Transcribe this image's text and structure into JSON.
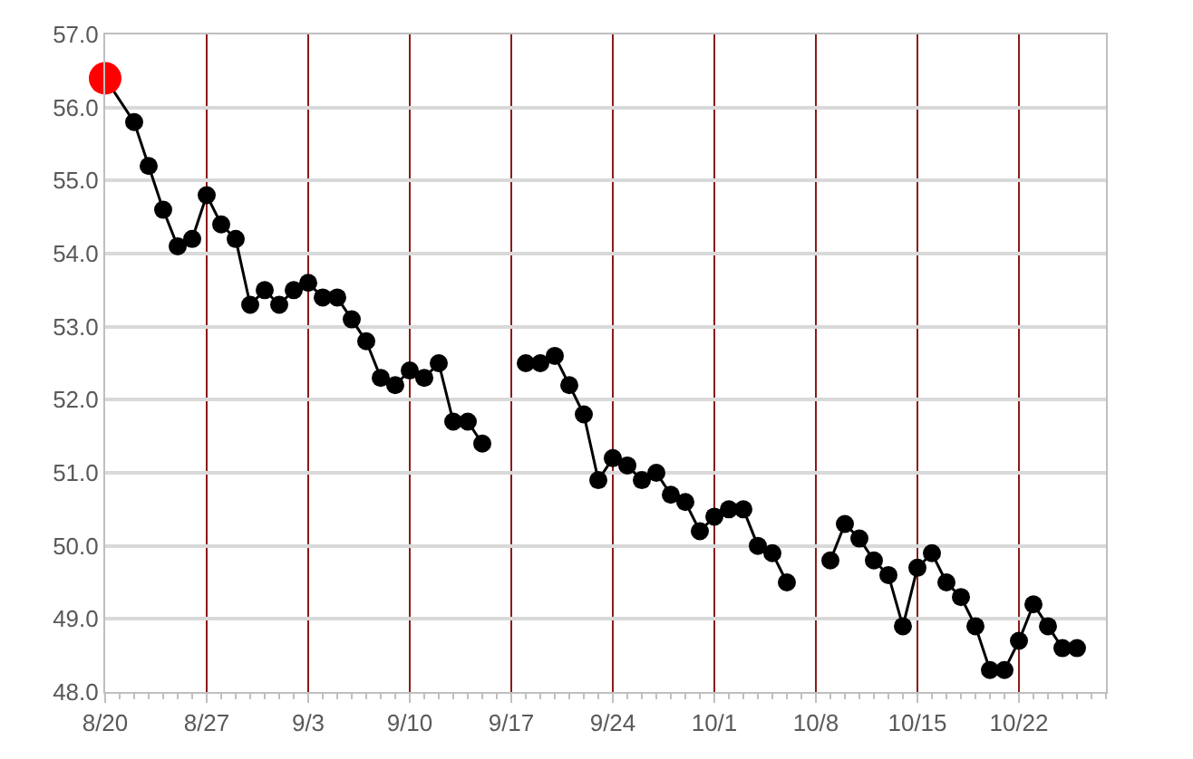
{
  "chart_data": {
    "type": "line",
    "x": [
      "--08-20",
      "--08-22",
      "--08-23",
      "--08-24",
      "--08-25",
      "--08-26",
      "--08-27",
      "--08-28",
      "--08-29",
      "--08-30",
      "--08-31",
      "--09-01",
      "--09-02",
      "--09-03",
      "--09-04",
      "--09-05",
      "--09-06",
      "--09-07",
      "--09-08",
      "--09-09",
      "--09-10",
      "--09-11",
      "--09-12",
      "--09-13",
      "--09-14",
      "--09-15",
      "--09-16",
      "--09-18",
      "--09-19",
      "--09-20",
      "--09-21",
      "--09-22",
      "--09-23",
      "--09-24",
      "--09-25",
      "--09-26",
      "--09-27",
      "--09-28",
      "--09-29",
      "--09-30",
      "--10-01",
      "--10-02",
      "--10-03",
      "--10-04",
      "--10-05",
      "--10-06",
      "--10-07",
      "--10-09",
      "--10-10",
      "--10-11",
      "--10-12",
      "--10-13",
      "--10-14",
      "--10-15",
      "--10-16",
      "--10-17",
      "--10-18",
      "--10-19",
      "--10-20",
      "--10-21",
      "--10-22",
      "--10-23",
      "--10-24",
      "--10-25",
      "--10-26"
    ],
    "series": [
      {
        "color": "#000000",
        "values": [
          56.4,
          55.8,
          55.2,
          54.6,
          54.1,
          54.2,
          54.8,
          54.4,
          54.2,
          53.3,
          53.5,
          53.3,
          53.5,
          53.6,
          53.4,
          53.4,
          53.1,
          52.8,
          52.3,
          52.2,
          52.4,
          52.3,
          52.5,
          51.7,
          51.7,
          51.4,
          null,
          52.5,
          52.5,
          52.6,
          52.2,
          51.8,
          50.9,
          51.2,
          51.1,
          50.9,
          51.0,
          50.7,
          50.6,
          50.2,
          50.4,
          50.5,
          50.5,
          50.0,
          49.9,
          49.5,
          null,
          49.8,
          50.3,
          50.1,
          49.8,
          49.6,
          48.9,
          49.7,
          49.9,
          49.5,
          49.3,
          48.9,
          48.3,
          48.3,
          48.7,
          49.2,
          48.9,
          48.6,
          48.6
        ],
        "colors": [
          "#ff0000",
          "#000000",
          "#000000",
          "#000000",
          "#000000",
          "#000000",
          "#000000",
          "#000000",
          "#000000",
          "#000000",
          "#000000",
          "#000000",
          "#000000",
          "#000000",
          "#000000",
          "#000000",
          "#000000",
          "#000000",
          "#000000",
          "#000000",
          "#000000",
          "#000000",
          "#000000",
          "#000000",
          "#000000",
          "#000000",
          "#000000",
          "#000000",
          "#000000",
          "#000000",
          "#000000",
          "#000000",
          "#000000",
          "#000000",
          "#000000",
          "#000000",
          "#000000",
          "#000000",
          "#000000",
          "#000000",
          "#000000",
          "#000000",
          "#000000",
          "#000000",
          "#000000",
          "#000000",
          "#000000",
          "#000000",
          "#000000",
          "#000000",
          "#000000",
          "#000000",
          "#000000",
          "#000000",
          "#000000",
          "#000000",
          "#000000",
          "#000000",
          "#000000",
          "#000000",
          "#000000",
          "#000000",
          "#000000",
          "#000000",
          "#000000"
        ]
      }
    ],
    "xlim": [
      "--08-20",
      "--10-28"
    ],
    "xticks": [
      {
        "value": "--08-20",
        "label": "8/20"
      },
      {
        "value": "--08-27",
        "label": "8/27"
      },
      {
        "value": "--09-03",
        "label": "9/3"
      },
      {
        "value": "--09-10",
        "label": "9/10"
      },
      {
        "value": "--09-17",
        "label": "9/17"
      },
      {
        "value": "--09-24",
        "label": "9/24"
      },
      {
        "value": "--10-01",
        "label": "10/1"
      },
      {
        "value": "--10-08",
        "label": "10/8"
      },
      {
        "value": "--10-15",
        "label": "10/15"
      },
      {
        "value": "--10-22",
        "label": "10/22"
      }
    ],
    "ylim": [
      48,
      57
    ],
    "yticks": [
      {
        "value": 48,
        "label": "48.0"
      },
      {
        "value": 49,
        "label": "49.0"
      },
      {
        "value": 50,
        "label": "50.0"
      },
      {
        "value": 51,
        "label": "51.0"
      },
      {
        "value": 52,
        "label": "52.0"
      },
      {
        "value": 53,
        "label": "53.0"
      },
      {
        "value": 54,
        "label": "54.0"
      },
      {
        "value": 55,
        "label": "55.0"
      },
      {
        "value": 56,
        "label": "56.0"
      },
      {
        "value": 57,
        "label": "57.0"
      }
    ],
    "grid": true,
    "marker": "circle",
    "line_style": "solid"
  }
}
